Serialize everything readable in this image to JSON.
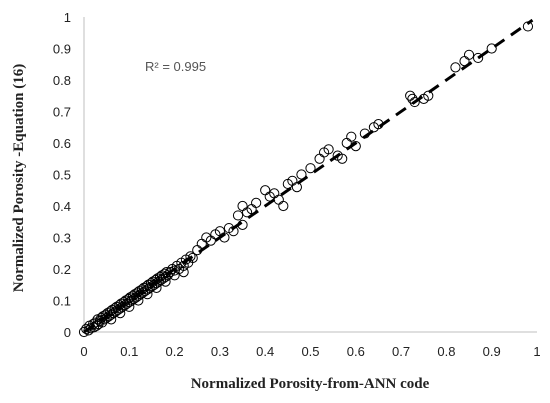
{
  "chart_data": {
    "type": "scatter",
    "title": "",
    "xlabel": "Normalized Porosity-from-ANN code",
    "ylabel": "Normalized Porosity -Equation (16)",
    "xlim": [
      0,
      1
    ],
    "ylim": [
      0,
      1
    ],
    "xticks": [
      "0",
      "0.1",
      "0.2",
      "0.3",
      "0.4",
      "0.5",
      "0.6",
      "0.7",
      "0.8",
      "0.9",
      "1"
    ],
    "yticks": [
      "0",
      "0.1",
      "0.2",
      "0.3",
      "0.4",
      "0.5",
      "0.6",
      "0.7",
      "0.8",
      "0.9",
      "1"
    ],
    "grid": false,
    "legend": "none",
    "annotation": "R² = 0.995",
    "trendline": {
      "style": "dashed",
      "x": [
        0,
        0.99
      ],
      "y": [
        0,
        0.99
      ]
    },
    "series": [
      {
        "marker": "open-circle",
        "points": [
          [
            0.0,
            0.0
          ],
          [
            0.005,
            0.01
          ],
          [
            0.01,
            0.005
          ],
          [
            0.012,
            0.02
          ],
          [
            0.015,
            0.012
          ],
          [
            0.02,
            0.025
          ],
          [
            0.022,
            0.015
          ],
          [
            0.025,
            0.03
          ],
          [
            0.028,
            0.02
          ],
          [
            0.03,
            0.04
          ],
          [
            0.032,
            0.025
          ],
          [
            0.035,
            0.035
          ],
          [
            0.038,
            0.045
          ],
          [
            0.04,
            0.03
          ],
          [
            0.042,
            0.05
          ],
          [
            0.045,
            0.04
          ],
          [
            0.048,
            0.055
          ],
          [
            0.05,
            0.045
          ],
          [
            0.052,
            0.06
          ],
          [
            0.055,
            0.05
          ],
          [
            0.058,
            0.065
          ],
          [
            0.06,
            0.055
          ],
          [
            0.062,
            0.07
          ],
          [
            0.065,
            0.06
          ],
          [
            0.068,
            0.075
          ],
          [
            0.07,
            0.065
          ],
          [
            0.072,
            0.08
          ],
          [
            0.075,
            0.07
          ],
          [
            0.078,
            0.085
          ],
          [
            0.08,
            0.075
          ],
          [
            0.082,
            0.09
          ],
          [
            0.085,
            0.08
          ],
          [
            0.088,
            0.095
          ],
          [
            0.09,
            0.085
          ],
          [
            0.092,
            0.1
          ],
          [
            0.095,
            0.09
          ],
          [
            0.098,
            0.105
          ],
          [
            0.1,
            0.095
          ],
          [
            0.102,
            0.11
          ],
          [
            0.105,
            0.1
          ],
          [
            0.108,
            0.115
          ],
          [
            0.11,
            0.105
          ],
          [
            0.112,
            0.12
          ],
          [
            0.115,
            0.11
          ],
          [
            0.118,
            0.125
          ],
          [
            0.12,
            0.115
          ],
          [
            0.122,
            0.13
          ],
          [
            0.125,
            0.12
          ],
          [
            0.128,
            0.135
          ],
          [
            0.13,
            0.125
          ],
          [
            0.132,
            0.14
          ],
          [
            0.135,
            0.13
          ],
          [
            0.138,
            0.145
          ],
          [
            0.14,
            0.135
          ],
          [
            0.142,
            0.15
          ],
          [
            0.145,
            0.14
          ],
          [
            0.148,
            0.155
          ],
          [
            0.15,
            0.145
          ],
          [
            0.152,
            0.16
          ],
          [
            0.155,
            0.15
          ],
          [
            0.158,
            0.165
          ],
          [
            0.16,
            0.155
          ],
          [
            0.162,
            0.17
          ],
          [
            0.165,
            0.16
          ],
          [
            0.168,
            0.175
          ],
          [
            0.17,
            0.165
          ],
          [
            0.172,
            0.18
          ],
          [
            0.175,
            0.17
          ],
          [
            0.178,
            0.185
          ],
          [
            0.18,
            0.175
          ],
          [
            0.182,
            0.19
          ],
          [
            0.185,
            0.18
          ],
          [
            0.19,
            0.19
          ],
          [
            0.195,
            0.2
          ],
          [
            0.2,
            0.195
          ],
          [
            0.205,
            0.21
          ],
          [
            0.21,
            0.2
          ],
          [
            0.215,
            0.22
          ],
          [
            0.22,
            0.21
          ],
          [
            0.225,
            0.23
          ],
          [
            0.23,
            0.22
          ],
          [
            0.235,
            0.24
          ],
          [
            0.24,
            0.235
          ],
          [
            0.06,
            0.04
          ],
          [
            0.08,
            0.06
          ],
          [
            0.1,
            0.08
          ],
          [
            0.12,
            0.1
          ],
          [
            0.14,
            0.12
          ],
          [
            0.16,
            0.14
          ],
          [
            0.18,
            0.16
          ],
          [
            0.2,
            0.18
          ],
          [
            0.22,
            0.19
          ],
          [
            0.25,
            0.26
          ],
          [
            0.26,
            0.28
          ],
          [
            0.27,
            0.3
          ],
          [
            0.28,
            0.29
          ],
          [
            0.29,
            0.31
          ],
          [
            0.3,
            0.32
          ],
          [
            0.31,
            0.3
          ],
          [
            0.32,
            0.33
          ],
          [
            0.33,
            0.32
          ],
          [
            0.34,
            0.37
          ],
          [
            0.35,
            0.34
          ],
          [
            0.35,
            0.4
          ],
          [
            0.36,
            0.38
          ],
          [
            0.37,
            0.39
          ],
          [
            0.38,
            0.41
          ],
          [
            0.4,
            0.45
          ],
          [
            0.41,
            0.43
          ],
          [
            0.42,
            0.44
          ],
          [
            0.43,
            0.42
          ],
          [
            0.44,
            0.4
          ],
          [
            0.45,
            0.47
          ],
          [
            0.46,
            0.48
          ],
          [
            0.47,
            0.46
          ],
          [
            0.48,
            0.5
          ],
          [
            0.5,
            0.52
          ],
          [
            0.52,
            0.55
          ],
          [
            0.53,
            0.57
          ],
          [
            0.54,
            0.58
          ],
          [
            0.56,
            0.56
          ],
          [
            0.57,
            0.55
          ],
          [
            0.58,
            0.6
          ],
          [
            0.59,
            0.62
          ],
          [
            0.6,
            0.59
          ],
          [
            0.62,
            0.63
          ],
          [
            0.64,
            0.65
          ],
          [
            0.65,
            0.66
          ],
          [
            0.72,
            0.75
          ],
          [
            0.725,
            0.74
          ],
          [
            0.73,
            0.73
          ],
          [
            0.75,
            0.74
          ],
          [
            0.76,
            0.75
          ],
          [
            0.82,
            0.84
          ],
          [
            0.84,
            0.86
          ],
          [
            0.85,
            0.88
          ],
          [
            0.87,
            0.87
          ],
          [
            0.9,
            0.9
          ],
          [
            0.98,
            0.97
          ]
        ]
      }
    ]
  }
}
